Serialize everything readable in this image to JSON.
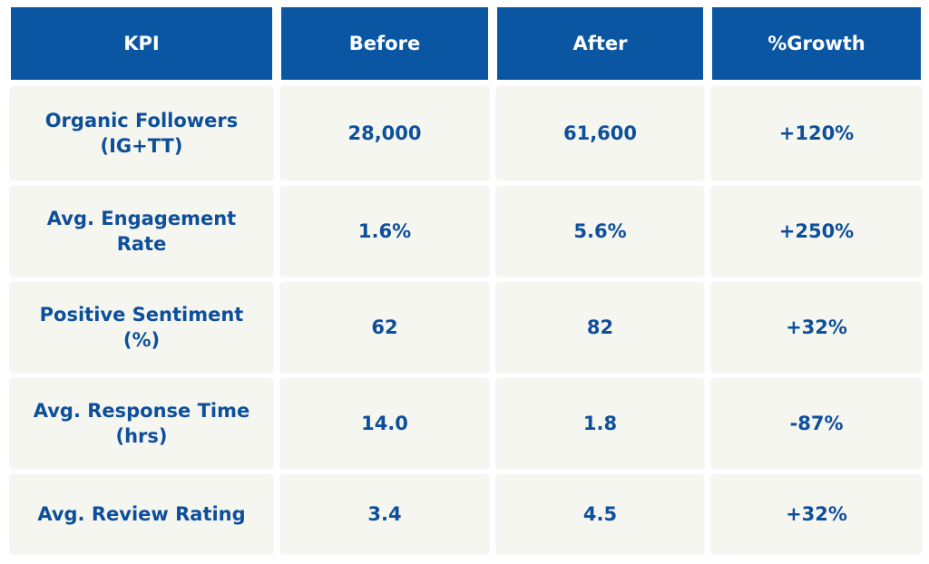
{
  "table": {
    "header": [
      "KPI",
      "Before",
      "After",
      "%Growth"
    ],
    "rows": [
      [
        [
          "Organic Followers",
          "(IG+TT)"
        ],
        "28,000",
        "61,600",
        "+120%"
      ],
      [
        [
          "Avg. Engagement",
          "Rate"
        ],
        "1.6%",
        "5.6%",
        "+250%"
      ],
      [
        [
          "Positive Sentiment",
          "(%)"
        ],
        "62",
        "82",
        "+32%"
      ],
      [
        [
          "Avg. Response Time",
          "(hrs)"
        ],
        "14.0",
        "1.8",
        "-87%"
      ],
      [
        [
          "Avg. Review Rating"
        ],
        "3.4",
        "4.5",
        "+32%"
      ]
    ]
  }
}
